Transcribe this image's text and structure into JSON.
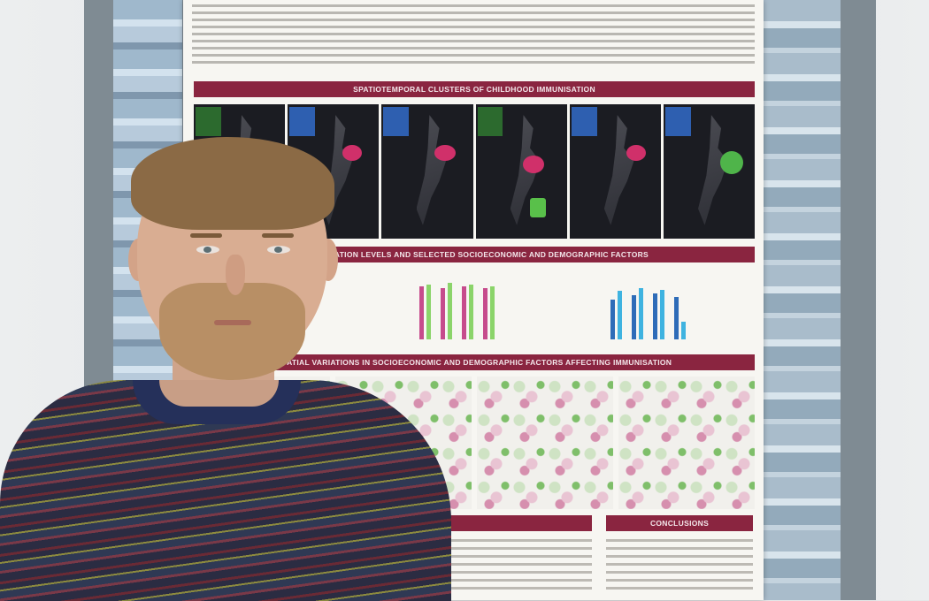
{
  "poster": {
    "banner_clusters": "SPATIOTEMPORAL CLUSTERS OF CHILDHOOD IMMUNISATION",
    "banner_levels": "IMMUNISATION LEVELS AND SELECTED SOCIOECONOMIC AND DEMOGRAPHIC FACTORS",
    "banner_variations": "SPATIAL VARIATIONS IN SOCIOECONOMIC AND DEMOGRAPHIC FACTORS AFFECTING IMMUNISATION",
    "banner_conclusions": "CONCLUSIONS"
  },
  "colors": {
    "banner": "#8a2540",
    "poster_bg": "#f7f6f2"
  },
  "subject": {
    "description_icon": "person-portrait"
  }
}
